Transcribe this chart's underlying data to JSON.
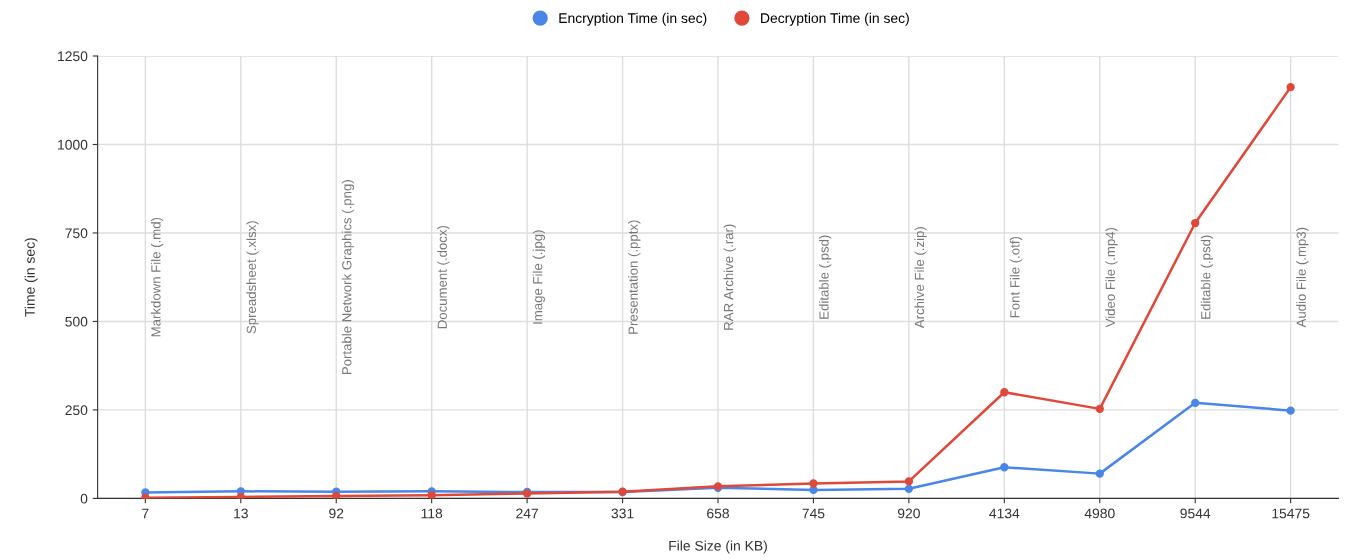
{
  "chart_data": {
    "type": "line",
    "xlabel": "File Size (in KB)",
    "ylabel": "Time (in sec)",
    "categories": [
      "7",
      "13",
      "92",
      "118",
      "247",
      "331",
      "658",
      "745",
      "920",
      "4134",
      "4980",
      "9544",
      "15475"
    ],
    "series": [
      {
        "name": "Encryption Time (in sec)",
        "color": "#4a86e8",
        "values": [
          17,
          20,
          19,
          20,
          18,
          18,
          30,
          24,
          27,
          88,
          70,
          270,
          248
        ]
      },
      {
        "name": "Decryption Time (in sec)",
        "color": "#e0483a",
        "values": [
          2,
          4,
          7,
          9,
          14,
          19,
          34,
          42,
          48,
          300,
          253,
          778,
          1162
        ]
      }
    ],
    "ylim": [
      0,
      1250
    ],
    "yticks": [
      0,
      250,
      500,
      750,
      1000,
      1250
    ],
    "grid": true,
    "legend": "top",
    "marker": "circle",
    "line_style": "solid",
    "annotations": [
      "Markdown File (.md)",
      "Spreadsheet (.xlsx)",
      "Portable Network Graphics (.png)",
      "Document (.docx)",
      "Image File (.jpg)",
      "Presentation (.pptx)",
      "RAR Archive (.rar)",
      "Editable (.psd)",
      "Archive File (.zip)",
      "Font File (.otf)",
      "Video File (.mp4)",
      "Editable (.psd)",
      "Audio File (.mp3)"
    ]
  }
}
